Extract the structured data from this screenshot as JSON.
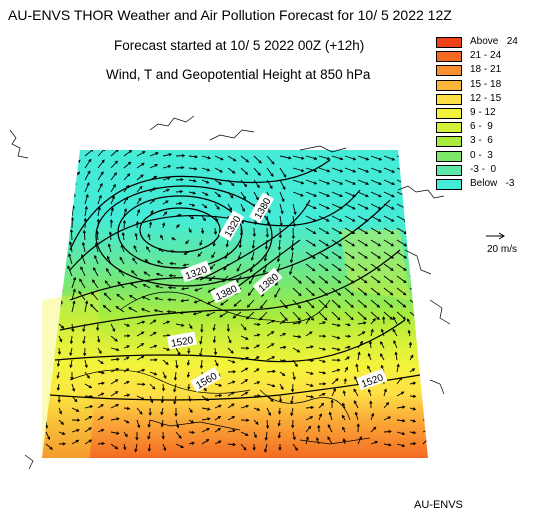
{
  "title": "AU-ENVS THOR Weather and Air Pollution Forecast for 10/ 5 2022  12Z",
  "subtitle_started": "Forecast started at 10/ 5 2022  00Z (+12h)",
  "subtitle_field": "Wind, T and Geopotential Height at 850 hPa",
  "footer": "AU-ENVS",
  "wind_scale": {
    "label": "20 m/s"
  },
  "legend": [
    {
      "label": "Above   24",
      "color": "#f0401a"
    },
    {
      "label": "21 - 24",
      "color": "#f46a22"
    },
    {
      "label": "18 - 21",
      "color": "#f89030"
    },
    {
      "label": "15 - 18",
      "color": "#fbb43c"
    },
    {
      "label": "12 - 15",
      "color": "#fde045"
    },
    {
      "label": "9 - 12",
      "color": "#f4f33b"
    },
    {
      "label": "6 -  9",
      "color": "#d6f03a"
    },
    {
      "label": "3 -  6",
      "color": "#aaec3e"
    },
    {
      "label": "0 -  3",
      "color": "#7ee86a"
    },
    {
      "label": "-3 -  0",
      "color": "#5ee8a8"
    },
    {
      "label": "Below   -3",
      "color": "#44ecd8"
    }
  ],
  "contour_labels": [
    "1320",
    "1380",
    "1320",
    "1380",
    "1380",
    "1520",
    "1560",
    "1520"
  ]
}
